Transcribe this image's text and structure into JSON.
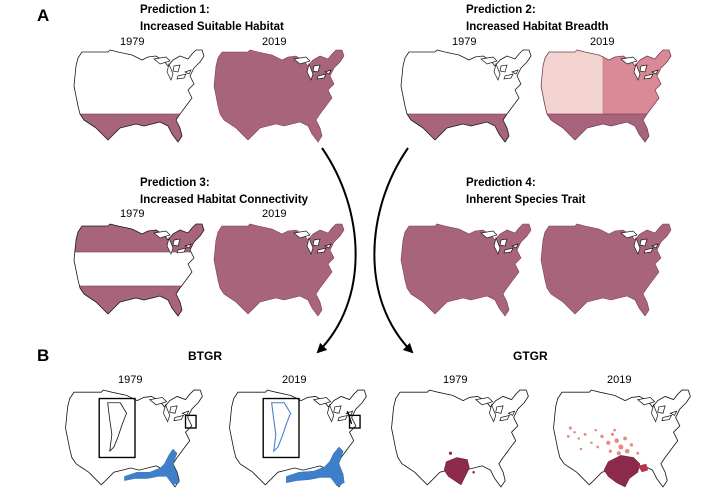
{
  "panel_a": {
    "letter": "A",
    "predictions": [
      {
        "title_line1": "Prediction 1:",
        "title_line2": "Increased Suitable Habitat",
        "year_left": "1979",
        "year_right": "2019"
      },
      {
        "title_line1": "Prediction 2:",
        "title_line2": "Increased Habitat Breadth",
        "year_left": "1979",
        "year_right": "2019"
      },
      {
        "title_line1": "Prediction 3:",
        "title_line2": "Increased Habitat Connectivity",
        "year_left": "1979",
        "year_right": "2019"
      },
      {
        "title_line1": "Prediction 4:",
        "title_line2": "Inherent Species Trait",
        "year_left": "",
        "year_right": ""
      }
    ]
  },
  "panel_b": {
    "letter": "B",
    "species": [
      {
        "name": "BTGR",
        "year_left": "1979",
        "year_right": "2019"
      },
      {
        "name": "GTGR",
        "year_left": "1979",
        "year_right": "2019"
      }
    ]
  },
  "colors": {
    "habitat": "#a8647a",
    "breadth_light": "#f3d3d0",
    "breadth_mid": "#da8a96",
    "btgr": "#3f7ec9",
    "gtgr_dense": "#8c2a4b",
    "gtgr_sparse": "#e07b6a"
  }
}
